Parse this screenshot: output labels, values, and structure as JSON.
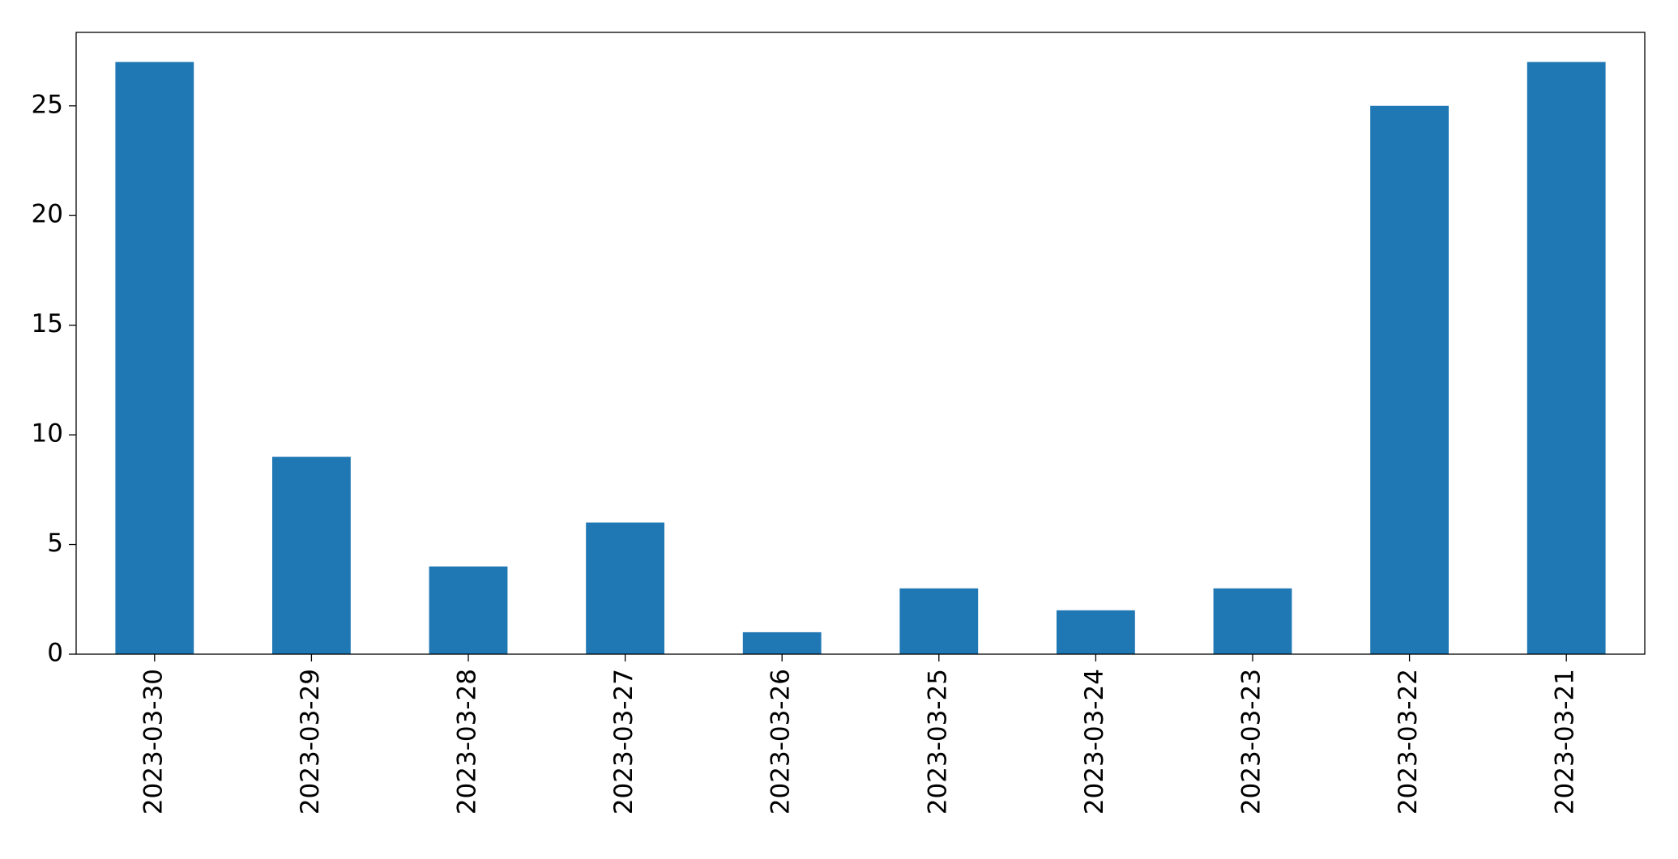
{
  "chart_data": {
    "type": "bar",
    "categories": [
      "2023-03-30",
      "2023-03-29",
      "2023-03-28",
      "2023-03-27",
      "2023-03-26",
      "2023-03-25",
      "2023-03-24",
      "2023-03-23",
      "2023-03-22",
      "2023-03-21"
    ],
    "values": [
      27,
      9,
      4,
      6,
      1,
      3,
      2,
      3,
      25,
      27
    ],
    "color": "#1f77b4",
    "ylim": [
      0,
      28.35
    ],
    "yticks": [
      0,
      5,
      10,
      15,
      20,
      25
    ],
    "grid": false
  }
}
